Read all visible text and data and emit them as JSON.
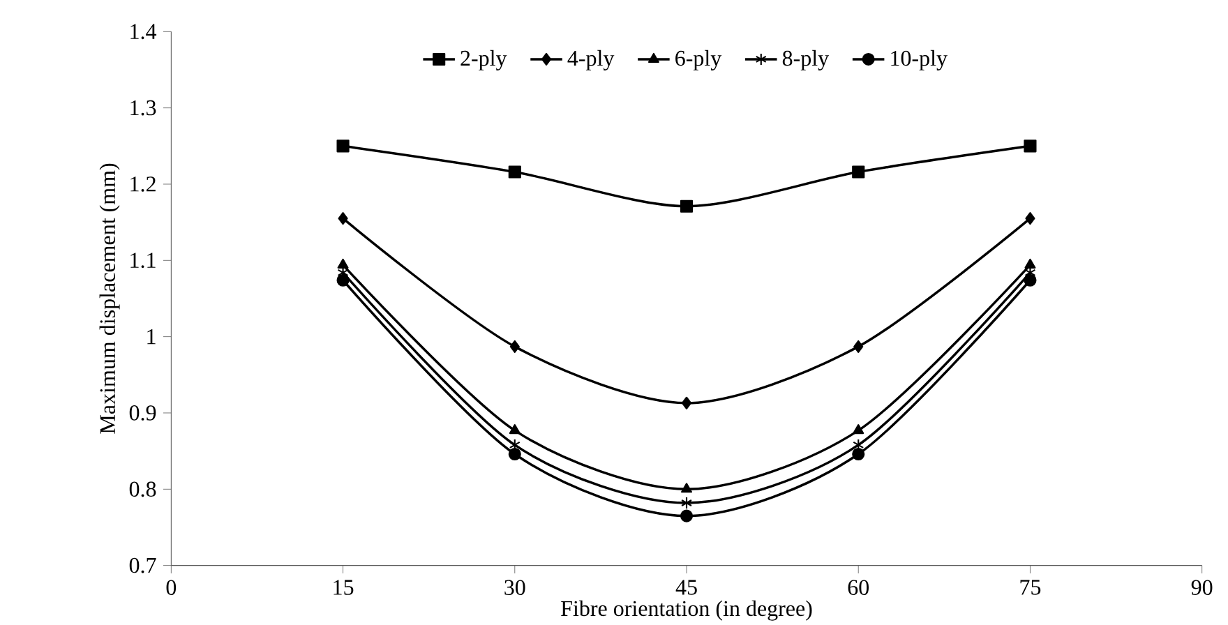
{
  "chart_data": {
    "type": "line",
    "xlabel": "Fibre orientation (in degree)",
    "ylabel": "Maximum displacement (mm)",
    "x": [
      15,
      30,
      45,
      60,
      75
    ],
    "series": [
      {
        "name": "2-ply",
        "color": "#000000",
        "marker": "square",
        "values": [
          1.25,
          1.216,
          1.171,
          1.216,
          1.25
        ]
      },
      {
        "name": "4-ply",
        "color": "#000000",
        "marker": "diamond",
        "values": [
          1.155,
          0.987,
          0.913,
          0.987,
          1.155
        ]
      },
      {
        "name": "6-ply",
        "color": "#000000",
        "marker": "triangle",
        "values": [
          1.094,
          0.877,
          0.8,
          0.877,
          1.094
        ]
      },
      {
        "name": "8-ply",
        "color": "#000000",
        "marker": "cross",
        "values": [
          1.084,
          0.858,
          0.782,
          0.858,
          1.084
        ]
      },
      {
        "name": "10-ply",
        "color": "#000000",
        "marker": "circle",
        "values": [
          1.074,
          0.846,
          0.765,
          0.846,
          1.074
        ]
      }
    ],
    "xlim": [
      0,
      90
    ],
    "xticks": [
      0,
      15,
      30,
      45,
      60,
      75,
      90
    ],
    "ylim": [
      0.7,
      1.4
    ],
    "yticks": [
      0.7,
      0.8,
      0.9,
      1,
      1.1,
      1.2,
      1.3,
      1.4
    ],
    "grid": false,
    "legend": "top",
    "line_style": "solid"
  }
}
